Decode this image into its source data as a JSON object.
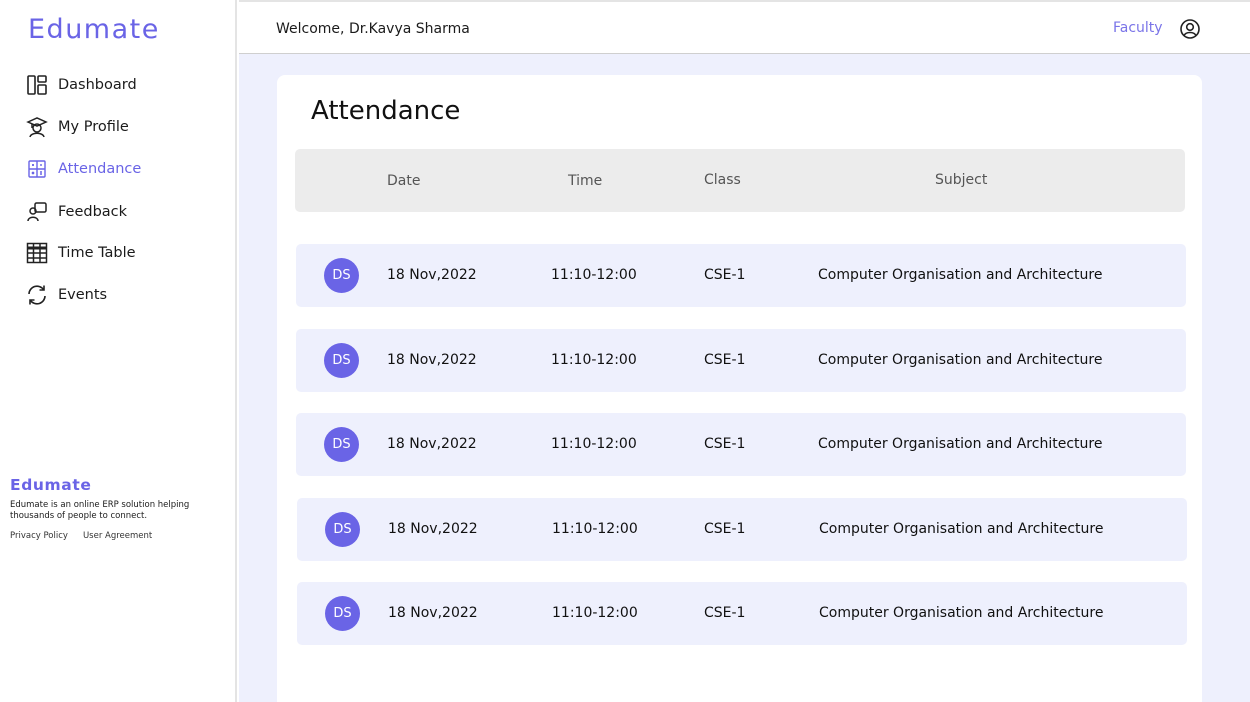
{
  "app": {
    "brand": "Edumate"
  },
  "sidebar": {
    "items": [
      {
        "label": "Dashboard",
        "icon": "dashboard-icon",
        "active": false
      },
      {
        "label": "My Profile",
        "icon": "graduate-icon",
        "active": false
      },
      {
        "label": "Attendance",
        "icon": "calculator-icon",
        "active": true
      },
      {
        "label": "Feedback",
        "icon": "feedback-icon",
        "active": false
      },
      {
        "label": "Time Table",
        "icon": "table-icon",
        "active": false
      },
      {
        "label": "Events",
        "icon": "refresh-icon",
        "active": false
      }
    ],
    "footer": {
      "brand": "Edumate",
      "description": "Edumate is an online ERP solution helping thousands of people to connect.",
      "links": [
        "Privacy Policy",
        "User Agreement"
      ]
    }
  },
  "header": {
    "welcome": "Welcome, Dr.Kavya Sharma",
    "role": "Faculty",
    "user_icon": "user-circle-icon"
  },
  "main": {
    "title": "Attendance",
    "columns": [
      "Date",
      "Time",
      "Class",
      "Subject"
    ],
    "rows": [
      {
        "initials": "DS",
        "date": "18 Nov,2022",
        "time": "11:10-12:00",
        "class": "CSE-1",
        "subject": "Computer Organisation and Architecture"
      },
      {
        "initials": "DS",
        "date": "18 Nov,2022",
        "time": "11:10-12:00",
        "class": "CSE-1",
        "subject": "Computer Organisation and Architecture"
      },
      {
        "initials": "DS",
        "date": "18 Nov,2022",
        "time": "11:10-12:00",
        "class": "CSE-1",
        "subject": "Computer Organisation and Architecture"
      },
      {
        "initials": "DS",
        "date": "18 Nov,2022",
        "time": "11:10-12:00",
        "class": "CSE-1",
        "subject": "Computer Organisation and Architecture"
      },
      {
        "initials": "DS",
        "date": "18 Nov,2022",
        "time": "11:10-12:00",
        "class": "CSE-1",
        "subject": "Computer Organisation and Architecture"
      }
    ]
  },
  "colors": {
    "accent": "#6a64e6",
    "row_bg": "#eef0fd",
    "header_bg": "#ececec"
  }
}
